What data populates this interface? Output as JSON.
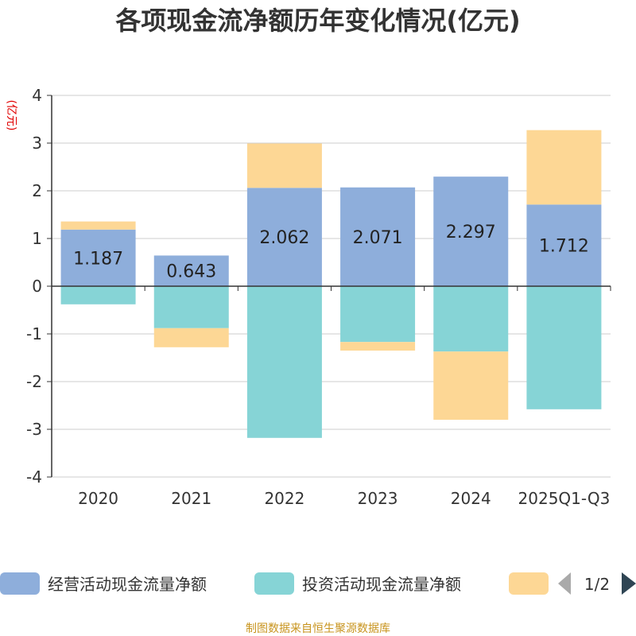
{
  "chart_data": {
    "type": "bar",
    "stacked": true,
    "title": "各项现金流净额历年变化情况(亿元)",
    "ylabel": "(亿元)",
    "xlabel": "",
    "ylim": [
      -4,
      4
    ],
    "yticks": [
      4,
      3,
      2,
      1,
      0,
      -1,
      -2,
      -3,
      -4
    ],
    "grid": true,
    "categories": [
      "2020",
      "2021",
      "2022",
      "2023",
      "2024",
      "2025Q1-Q3"
    ],
    "series": [
      {
        "name": "经营活动现金流量净额",
        "color": "#8eaedb",
        "values": [
          1.187,
          0.643,
          2.062,
          2.071,
          2.297,
          1.712
        ],
        "labels": [
          "1.187",
          "0.643",
          "2.062",
          "2.071",
          "2.297",
          "1.712"
        ]
      },
      {
        "name": "投资活动现金流量净额",
        "color": "#86d4d6",
        "values": [
          -0.38,
          -0.88,
          -3.18,
          -1.17,
          -1.37,
          -2.58
        ]
      },
      {
        "name": "",
        "color": "#fdd795",
        "values": [
          0.17,
          -0.4,
          0.93,
          -0.18,
          -1.43,
          1.56
        ]
      }
    ],
    "legend": {
      "position": "bottom",
      "page": "1/2"
    }
  },
  "source": "制图数据来自恒生聚源数据库"
}
